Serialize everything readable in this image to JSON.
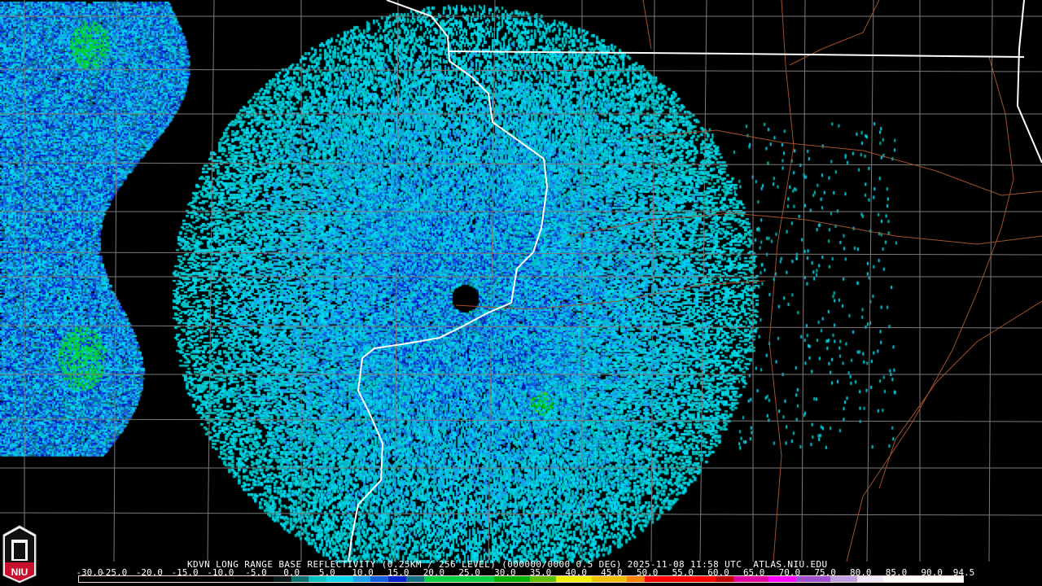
{
  "caption": {
    "station": "KDVN",
    "product": "LONG RANGE BASE REFLECTIVITY (0.25KM / 256 LEVEL)",
    "vcp": "(000000/0000 0.5 DEG)",
    "timestamp": "2025-11-08 11:58 UTC",
    "source": "ATLAS.NIU.EDU"
  },
  "logo": {
    "text": "NIU",
    "brand_color": "#c8102e"
  },
  "colorbar": {
    "unit_range": [
      -30.0,
      94.5
    ],
    "labels": [
      "-30.0",
      "-25.0",
      "-20.0",
      "-15.0",
      "-10.0",
      "-5.0",
      "0.0",
      "5.0",
      "10.0",
      "15.0",
      "20.0",
      "25.0",
      "30.0",
      "35.0",
      "40.0",
      "45.0",
      "50.0",
      "55.0",
      "60.0",
      "65.0",
      "70.0",
      "75.0",
      "80.0",
      "85.0",
      "90.0",
      "94.5"
    ],
    "color_stops": [
      {
        "value": -30,
        "color": "#000000"
      },
      {
        "value": -2,
        "color": "#0a1a1a"
      },
      {
        "value": 0,
        "color": "#0a7070"
      },
      {
        "value": 2,
        "color": "#00c0c0"
      },
      {
        "value": 5,
        "color": "#00d8f0"
      },
      {
        "value": 8,
        "color": "#1aa0f0"
      },
      {
        "value": 11,
        "color": "#1060e0"
      },
      {
        "value": 14,
        "color": "#0020d0"
      },
      {
        "value": 16,
        "color": "#107080"
      },
      {
        "value": 18,
        "color": "#00d040"
      },
      {
        "value": 28,
        "color": "#00b000"
      },
      {
        "value": 34,
        "color": "#60c000"
      },
      {
        "value": 37,
        "color": "#f0f000"
      },
      {
        "value": 42,
        "color": "#f0c000"
      },
      {
        "value": 47,
        "color": "#ff8000"
      },
      {
        "value": 50,
        "color": "#ff0000"
      },
      {
        "value": 60,
        "color": "#c00000"
      },
      {
        "value": 62,
        "color": "#e000a0"
      },
      {
        "value": 67,
        "color": "#ff00ff"
      },
      {
        "value": 71,
        "color": "#a050d0"
      },
      {
        "value": 76,
        "color": "#c0a0e0"
      },
      {
        "value": 79,
        "color": "#f0e8f8"
      },
      {
        "value": 83,
        "color": "#ffffff"
      },
      {
        "value": 94.5,
        "color": "#ffffff"
      }
    ]
  },
  "map": {
    "state_border_color": "#ffffff",
    "county_line_color": "#808080",
    "road_color": "#a0502a",
    "radar_site": "KDVN"
  }
}
